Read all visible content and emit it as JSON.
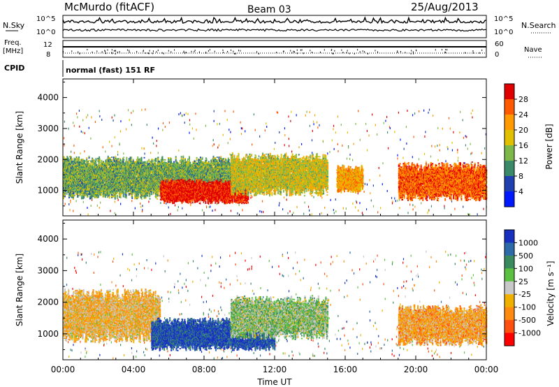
{
  "header": {
    "station": "McMurdo (fitACF)",
    "beam": "Beam 03",
    "date": "25/Aug/2013"
  },
  "noise_panel": {
    "left_label": "N.Sky",
    "right_label": "N.Search",
    "left_ticks": [
      "10^5",
      "10^0"
    ],
    "right_ticks": [
      "10^5",
      "10^0"
    ]
  },
  "freq_panel": {
    "left_label_1": "Freq.",
    "left_label_2": "[MHz]",
    "right_label": "Nave",
    "left_ticks": [
      "12",
      "8"
    ],
    "right_ticks": [
      "60",
      "0"
    ]
  },
  "cpid_panel": {
    "label": "CPID",
    "text": "normal (fast) 151 RF"
  },
  "power_panel": {
    "ylabel": "Slant Range [km]",
    "yticks": [
      "4000",
      "3000",
      "2000",
      "1000"
    ],
    "colorbar_title": "Power [dB]",
    "colorbar_ticks": [
      "28",
      "24",
      "20",
      "16",
      "12",
      "8",
      "4"
    ],
    "colorbar_colors": [
      "#e00000",
      "#ff5a00",
      "#ff9a00",
      "#e0c000",
      "#7fb84a",
      "#3a8a6a",
      "#2040b0",
      "#0018ff"
    ]
  },
  "velocity_panel": {
    "ylabel": "Slant Range [km]",
    "yticks": [
      "4000",
      "3000",
      "2000",
      "1000"
    ],
    "colorbar_title": "Velocity [m s⁻¹]",
    "colorbar_ticks": [
      "1000",
      "500",
      "100",
      "25",
      "-25",
      "-100",
      "-500",
      "-1000"
    ],
    "colorbar_colors": [
      "#1830c0",
      "#2c6aa8",
      "#3a8a60",
      "#5cc040",
      "#c8c8c8",
      "#f0b000",
      "#ff8a10",
      "#ff5010",
      "#ff0000"
    ]
  },
  "x_axis": {
    "label": "Time UT",
    "ticks": [
      "00:00",
      "04:00",
      "08:00",
      "12:00",
      "16:00",
      "20:00",
      "00:00"
    ]
  },
  "chart_data": [
    {
      "type": "heatmap",
      "name": "power",
      "xlabel": "Time UT",
      "ylabel": "Slant Range [km]",
      "xlim_hours": [
        0,
        24
      ],
      "ylim_km": [
        180,
        4600
      ],
      "colorbar_label": "Power [dB]",
      "colorbar_range": [
        0,
        30
      ],
      "features": [
        {
          "t_start": 0.0,
          "t_end": 9.6,
          "range_km": [
            700,
            2100
          ],
          "typical_value": 12
        },
        {
          "t_start": 5.5,
          "t_end": 10.5,
          "range_km": [
            550,
            1350
          ],
          "typical_value": 28
        },
        {
          "t_start": 9.5,
          "t_end": 15.0,
          "range_km": [
            800,
            2200
          ],
          "typical_value": 16
        },
        {
          "t_start": 15.5,
          "t_end": 17.0,
          "range_km": [
            900,
            1800
          ],
          "typical_value": 20
        },
        {
          "t_start": 19.0,
          "t_end": 24.0,
          "range_km": [
            650,
            1900
          ],
          "typical_value": 24
        }
      ]
    },
    {
      "type": "heatmap",
      "name": "velocity",
      "xlabel": "Time UT",
      "ylabel": "Slant Range [km]",
      "xlim_hours": [
        0,
        24
      ],
      "ylim_km": [
        180,
        4600
      ],
      "colorbar_label": "Velocity [m s-1]",
      "colorbar_range": [
        -1000,
        1000
      ],
      "features": [
        {
          "t_start": 0.0,
          "t_end": 5.5,
          "range_km": [
            700,
            2400
          ],
          "typical_value": -200
        },
        {
          "t_start": 5.0,
          "t_end": 12.0,
          "range_km": [
            450,
            1500
          ],
          "typical_value": 800
        },
        {
          "t_start": 9.5,
          "t_end": 15.0,
          "range_km": [
            800,
            2200
          ],
          "typical_value": 150
        },
        {
          "t_start": 19.0,
          "t_end": 24.0,
          "range_km": [
            600,
            1900
          ],
          "typical_value": -300
        }
      ]
    }
  ]
}
